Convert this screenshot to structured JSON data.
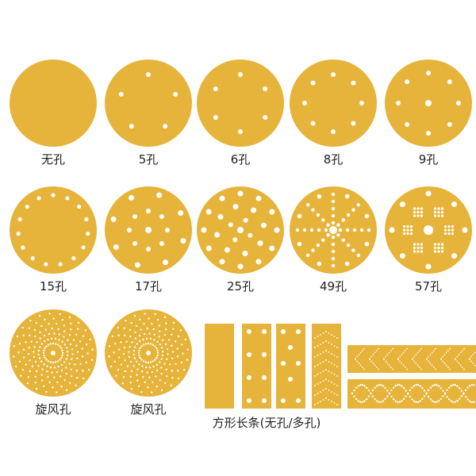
{
  "colors": {
    "disc": "#E6B43A",
    "hole": "#FFFFFF",
    "background": "#FFFFFF"
  },
  "discs": [
    {
      "label": "无孔",
      "holes": 0,
      "pattern": "none"
    },
    {
      "label": "5孔",
      "holes": 5,
      "pattern": "ring"
    },
    {
      "label": "6孔",
      "holes": 6,
      "pattern": "ring"
    },
    {
      "label": "8孔",
      "holes": 8,
      "pattern": "ring"
    },
    {
      "label": "9孔",
      "holes": 9,
      "pattern": "ring-center"
    },
    {
      "label": "15孔",
      "holes": 15,
      "pattern": "ring"
    },
    {
      "label": "17孔",
      "holes": 17,
      "pattern": "rings-center"
    },
    {
      "label": "25孔",
      "holes": 25,
      "pattern": "rings-center"
    },
    {
      "label": "49孔",
      "holes": 49,
      "pattern": "rays"
    },
    {
      "label": "57孔",
      "holes": 57,
      "pattern": "clusters"
    },
    {
      "label": "旋风孔",
      "pattern": "spiral"
    },
    {
      "label": "旋风孔",
      "pattern": "spiral"
    }
  ],
  "strips": {
    "label": "方形长条(无孔/多孔)"
  }
}
